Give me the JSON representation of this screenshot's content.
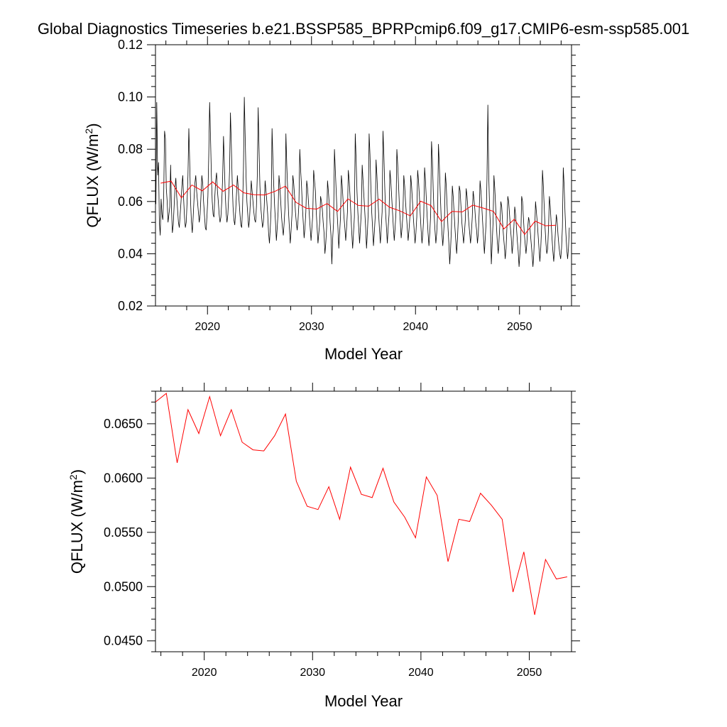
{
  "title": "Global Diagnostics Timeseries b.e21.BSSP585_BPRPcmip6.f09_g17.CMIP6-esm-ssp585.001",
  "colors": {
    "monthly": "#000000",
    "annual": "#ff0000",
    "axis": "#000000"
  },
  "chart_data": [
    {
      "type": "line",
      "title": "Global Diagnostics Timeseries b.e21.BSSP585_BPRPcmip6.f09_g17.CMIP6-esm-ssp585.001",
      "xlabel": "Model Year",
      "ylabel": "QFLUX (W/m",
      "ylabel_sup": "2",
      "ylabel_close": ")",
      "xlim": [
        2015,
        2055
      ],
      "ylim": [
        0.02,
        0.12
      ],
      "xticks": [
        2020,
        2030,
        2040,
        2050
      ],
      "xtick_labels": [
        "2020",
        "2030",
        "2040",
        "2050"
      ],
      "yticks": [
        0.02,
        0.04,
        0.06,
        0.08,
        0.1,
        0.12
      ],
      "ytick_labels": [
        "0.02",
        "0.04",
        "0.06",
        "0.08",
        "0.10",
        "0.12"
      ],
      "grid": false,
      "series": [
        {
          "style": "monthly",
          "x_start": 2015.04,
          "x_step": 0.0833333,
          "values": [
            0.059,
            0.098,
            0.07,
            0.075,
            0.052,
            0.047,
            0.061,
            0.055,
            0.053,
            0.062,
            0.087,
            0.084,
            0.065,
            0.06,
            0.052,
            0.055,
            0.058,
            0.074,
            0.057,
            0.048,
            0.051,
            0.058,
            0.065,
            0.069,
            0.062,
            0.057,
            0.052,
            0.05,
            0.055,
            0.06,
            0.066,
            0.07,
            0.061,
            0.054,
            0.05,
            0.052,
            0.06,
            0.07,
            0.088,
            0.075,
            0.06,
            0.052,
            0.048,
            0.054,
            0.061,
            0.067,
            0.07,
            0.064,
            0.06,
            0.056,
            0.052,
            0.055,
            0.062,
            0.07,
            0.067,
            0.06,
            0.055,
            0.05,
            0.049,
            0.055,
            0.062,
            0.078,
            0.098,
            0.085,
            0.07,
            0.06,
            0.055,
            0.054,
            0.062,
            0.068,
            0.071,
            0.064,
            0.06,
            0.055,
            0.052,
            0.054,
            0.06,
            0.069,
            0.085,
            0.074,
            0.063,
            0.056,
            0.052,
            0.055,
            0.062,
            0.072,
            0.094,
            0.082,
            0.068,
            0.058,
            0.053,
            0.051,
            0.056,
            0.063,
            0.07,
            0.065,
            0.06,
            0.055,
            0.051,
            0.05,
            0.058,
            0.072,
            0.1,
            0.085,
            0.07,
            0.06,
            0.055,
            0.05,
            0.053,
            0.06,
            0.068,
            0.064,
            0.06,
            0.056,
            0.053,
            0.052,
            0.058,
            0.07,
            0.096,
            0.08,
            0.066,
            0.058,
            0.054,
            0.05,
            0.052,
            0.058,
            0.068,
            0.064,
            0.06,
            0.055,
            0.048,
            0.044,
            0.05,
            0.058,
            0.088,
            0.076,
            0.066,
            0.058,
            0.052,
            0.045,
            0.05,
            0.056,
            0.07,
            0.066,
            0.06,
            0.054,
            0.05,
            0.047,
            0.052,
            0.058,
            0.086,
            0.074,
            0.065,
            0.056,
            0.05,
            0.044,
            0.049,
            0.055,
            0.07,
            0.067,
            0.062,
            0.056,
            0.052,
            0.049,
            0.053,
            0.059,
            0.08,
            0.072,
            0.066,
            0.058,
            0.052,
            0.046,
            0.05,
            0.056,
            0.068,
            0.065,
            0.06,
            0.055,
            0.05,
            0.045,
            0.05,
            0.055,
            0.072,
            0.068,
            0.064,
            0.056,
            0.05,
            0.044,
            0.048,
            0.052,
            0.062,
            0.06,
            0.057,
            0.052,
            0.048,
            0.04,
            0.044,
            0.05,
            0.068,
            0.064,
            0.059,
            0.052,
            0.047,
            0.036,
            0.046,
            0.052,
            0.08,
            0.072,
            0.064,
            0.056,
            0.05,
            0.042,
            0.048,
            0.054,
            0.07,
            0.066,
            0.06,
            0.054,
            0.05,
            0.045,
            0.05,
            0.056,
            0.072,
            0.068,
            0.062,
            0.055,
            0.048,
            0.042,
            0.048,
            0.054,
            0.086,
            0.076,
            0.064,
            0.056,
            0.05,
            0.044,
            0.05,
            0.056,
            0.074,
            0.068,
            0.062,
            0.056,
            0.05,
            0.042,
            0.048,
            0.056,
            0.086,
            0.078,
            0.066,
            0.056,
            0.05,
            0.043,
            0.048,
            0.054,
            0.076,
            0.07,
            0.062,
            0.055,
            0.049,
            0.044,
            0.05,
            0.056,
            0.087,
            0.078,
            0.066,
            0.056,
            0.05,
            0.044,
            0.05,
            0.055,
            0.072,
            0.068,
            0.062,
            0.056,
            0.05,
            0.045,
            0.05,
            0.056,
            0.08,
            0.074,
            0.066,
            0.058,
            0.052,
            0.046,
            0.05,
            0.055,
            0.07,
            0.066,
            0.06,
            0.055,
            0.05,
            0.045,
            0.049,
            0.054,
            0.07,
            0.066,
            0.06,
            0.054,
            0.049,
            0.044,
            0.048,
            0.054,
            0.072,
            0.068,
            0.062,
            0.055,
            0.049,
            0.044,
            0.048,
            0.054,
            0.073,
            0.068,
            0.061,
            0.054,
            0.048,
            0.043,
            0.048,
            0.055,
            0.083,
            0.076,
            0.064,
            0.055,
            0.049,
            0.044,
            0.048,
            0.055,
            0.082,
            0.074,
            0.064,
            0.055,
            0.048,
            0.043,
            0.048,
            0.054,
            0.071,
            0.066,
            0.058,
            0.05,
            0.044,
            0.036,
            0.042,
            0.05,
            0.066,
            0.062,
            0.056,
            0.05,
            0.045,
            0.04,
            0.046,
            0.054,
            0.066,
            0.064,
            0.058,
            0.052,
            0.048,
            0.044,
            0.048,
            0.053,
            0.065,
            0.062,
            0.057,
            0.052,
            0.048,
            0.044,
            0.048,
            0.054,
            0.064,
            0.061,
            0.057,
            0.052,
            0.049,
            0.044,
            0.048,
            0.056,
            0.068,
            0.064,
            0.058,
            0.052,
            0.046,
            0.04,
            0.046,
            0.052,
            0.069,
            0.097,
            0.07,
            0.058,
            0.05,
            0.036,
            0.044,
            0.052,
            0.07,
            0.065,
            0.058,
            0.05,
            0.044,
            0.04,
            0.046,
            0.052,
            0.06,
            0.058,
            0.052,
            0.047,
            0.043,
            0.038,
            0.042,
            0.05,
            0.062,
            0.06,
            0.055,
            0.05,
            0.046,
            0.04,
            0.044,
            0.05,
            0.058,
            0.055,
            0.05,
            0.045,
            0.041,
            0.035,
            0.04,
            0.046,
            0.062,
            0.06,
            0.054,
            0.048,
            0.044,
            0.04,
            0.044,
            0.05,
            0.054,
            0.052,
            0.048,
            0.044,
            0.04,
            0.035,
            0.04,
            0.048,
            0.06,
            0.056,
            0.052,
            0.047,
            0.042,
            0.037,
            0.042,
            0.05,
            0.072,
            0.066,
            0.058,
            0.05,
            0.044,
            0.04,
            0.042,
            0.05,
            0.062,
            0.058,
            0.052,
            0.046,
            0.041,
            0.037,
            0.042,
            0.049,
            0.055,
            0.052,
            0.047,
            0.043,
            0.04,
            0.038,
            0.042,
            0.05,
            0.073,
            0.066,
            0.056,
            0.048,
            0.042,
            0.038,
            0.042,
            0.05
          ]
        },
        {
          "style": "annual",
          "x": [
            2015.5,
            2016.5,
            2017.5,
            2018.5,
            2019.5,
            2020.5,
            2021.5,
            2022.5,
            2023.5,
            2024.5,
            2025.5,
            2026.5,
            2027.5,
            2028.5,
            2029.5,
            2030.5,
            2031.5,
            2032.5,
            2033.5,
            2034.5,
            2035.5,
            2036.5,
            2037.5,
            2038.5,
            2039.5,
            2040.5,
            2041.5,
            2042.5,
            2043.5,
            2044.5,
            2045.5,
            2046.5,
            2047.5,
            2048.5,
            2049.5,
            2050.5,
            2051.5,
            2052.5,
            2053.5
          ],
          "values": [
            0.067,
            0.0678,
            0.0614,
            0.0663,
            0.0641,
            0.0675,
            0.0639,
            0.0663,
            0.0633,
            0.0626,
            0.0625,
            0.0639,
            0.0659,
            0.0597,
            0.0574,
            0.0571,
            0.0592,
            0.0562,
            0.061,
            0.0585,
            0.0582,
            0.0609,
            0.0578,
            0.0564,
            0.0545,
            0.0601,
            0.0584,
            0.0523,
            0.0562,
            0.056,
            0.0586,
            0.0575,
            0.0562,
            0.0495,
            0.0532,
            0.0474,
            0.0525,
            0.0507,
            0.0509
          ]
        }
      ]
    },
    {
      "type": "line",
      "title": "",
      "xlabel": "Model Year",
      "ylabel": "QFLUX (W/m",
      "ylabel_sup": "2",
      "ylabel_close": ")",
      "xlim": [
        2015.5,
        2053.9
      ],
      "ylim": [
        0.044,
        0.068
      ],
      "xticks": [
        2020,
        2030,
        2040,
        2050
      ],
      "xtick_labels": [
        "2020",
        "2030",
        "2040",
        "2050"
      ],
      "yticks": [
        0.045,
        0.05,
        0.055,
        0.06,
        0.065
      ],
      "ytick_labels": [
        "0.0450",
        "0.0500",
        "0.0550",
        "0.0600",
        "0.0650"
      ],
      "grid": false,
      "series": [
        {
          "style": "annual",
          "x": [
            2015.5,
            2016.5,
            2017.5,
            2018.5,
            2019.5,
            2020.5,
            2021.5,
            2022.5,
            2023.5,
            2024.5,
            2025.5,
            2026.5,
            2027.5,
            2028.5,
            2029.5,
            2030.5,
            2031.5,
            2032.5,
            2033.5,
            2034.5,
            2035.5,
            2036.5,
            2037.5,
            2038.5,
            2039.5,
            2040.5,
            2041.5,
            2042.5,
            2043.5,
            2044.5,
            2045.5,
            2046.5,
            2047.5,
            2048.5,
            2049.5,
            2050.5,
            2051.5,
            2052.5,
            2053.5
          ],
          "values": [
            0.067,
            0.0678,
            0.0614,
            0.0663,
            0.0641,
            0.0675,
            0.0639,
            0.0663,
            0.0633,
            0.0626,
            0.0625,
            0.0639,
            0.0659,
            0.0597,
            0.0574,
            0.0571,
            0.0592,
            0.0562,
            0.061,
            0.0585,
            0.0582,
            0.0609,
            0.0578,
            0.0564,
            0.0545,
            0.0601,
            0.0584,
            0.0523,
            0.0562,
            0.056,
            0.0586,
            0.0575,
            0.0562,
            0.0495,
            0.0532,
            0.0474,
            0.0525,
            0.0507,
            0.0509
          ]
        }
      ]
    }
  ]
}
